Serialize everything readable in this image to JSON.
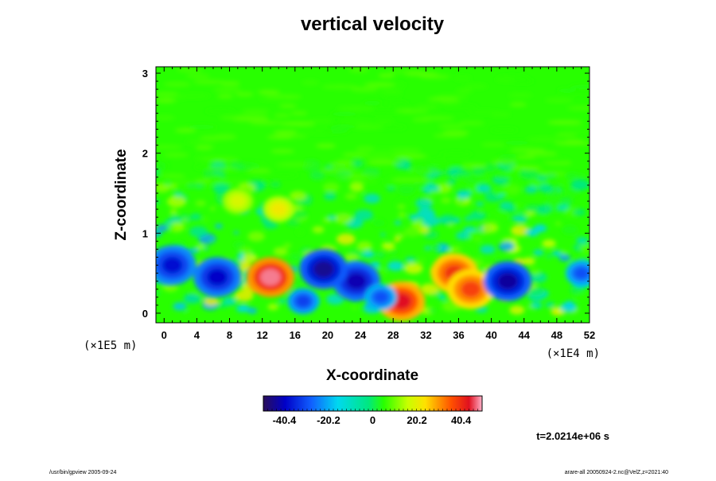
{
  "chart_data": {
    "type": "heatmap",
    "title": "vertical velocity",
    "xlabel": "X-coordinate",
    "ylabel": "Z-coordinate",
    "x_scale_label": "(×1E4 m)",
    "z_scale_label": "(×1E5 m)",
    "xlim": [
      -1,
      52
    ],
    "zlim": [
      -0.12,
      3.08
    ],
    "x_ticks": [
      "0",
      "4",
      "8",
      "12",
      "16",
      "20",
      "24",
      "28",
      "32",
      "36",
      "40",
      "44",
      "48",
      "52"
    ],
    "x_tick_values": [
      0,
      4,
      8,
      12,
      16,
      20,
      24,
      28,
      32,
      36,
      40,
      44,
      48,
      52
    ],
    "z_ticks": [
      "0",
      "1",
      "2",
      "3"
    ],
    "z_tick_values": [
      0,
      1,
      2,
      3
    ],
    "colorbar": {
      "min": -50,
      "max": 50,
      "tick_labels": [
        "-40.4",
        "-20.2",
        "0",
        "20.2",
        "40.4"
      ],
      "tick_values": [
        -40.4,
        -20.2,
        0,
        20.2,
        40.4
      ]
    },
    "features": [
      {
        "x": 13,
        "z": 0.45,
        "value": 48
      },
      {
        "x": 35.5,
        "z": 0.5,
        "value": 40
      },
      {
        "x": 37.5,
        "z": 0.3,
        "value": 38
      },
      {
        "x": 29,
        "z": 0.15,
        "value": 44
      },
      {
        "x": 42,
        "z": 0.4,
        "value": -44
      },
      {
        "x": 23.5,
        "z": 0.4,
        "value": -42
      },
      {
        "x": 19.5,
        "z": 0.55,
        "value": -45
      },
      {
        "x": 6.5,
        "z": 0.45,
        "value": -40
      },
      {
        "x": 1,
        "z": 0.6,
        "value": -38
      },
      {
        "x": 51,
        "z": 0.5,
        "value": -30
      },
      {
        "x": 17,
        "z": 0.15,
        "value": -32
      },
      {
        "x": 26.5,
        "z": 0.2,
        "value": -30
      },
      {
        "x": 9,
        "z": 1.4,
        "value": 18
      },
      {
        "x": 14,
        "z": 1.3,
        "value": 22
      }
    ]
  },
  "time_label": "t=2.0214e+06 s",
  "footer_left": "/usr/bin/gpview 2005-09-24",
  "footer_right": "arare-all 20050924-2.nc@VelZ,z=2021:40"
}
